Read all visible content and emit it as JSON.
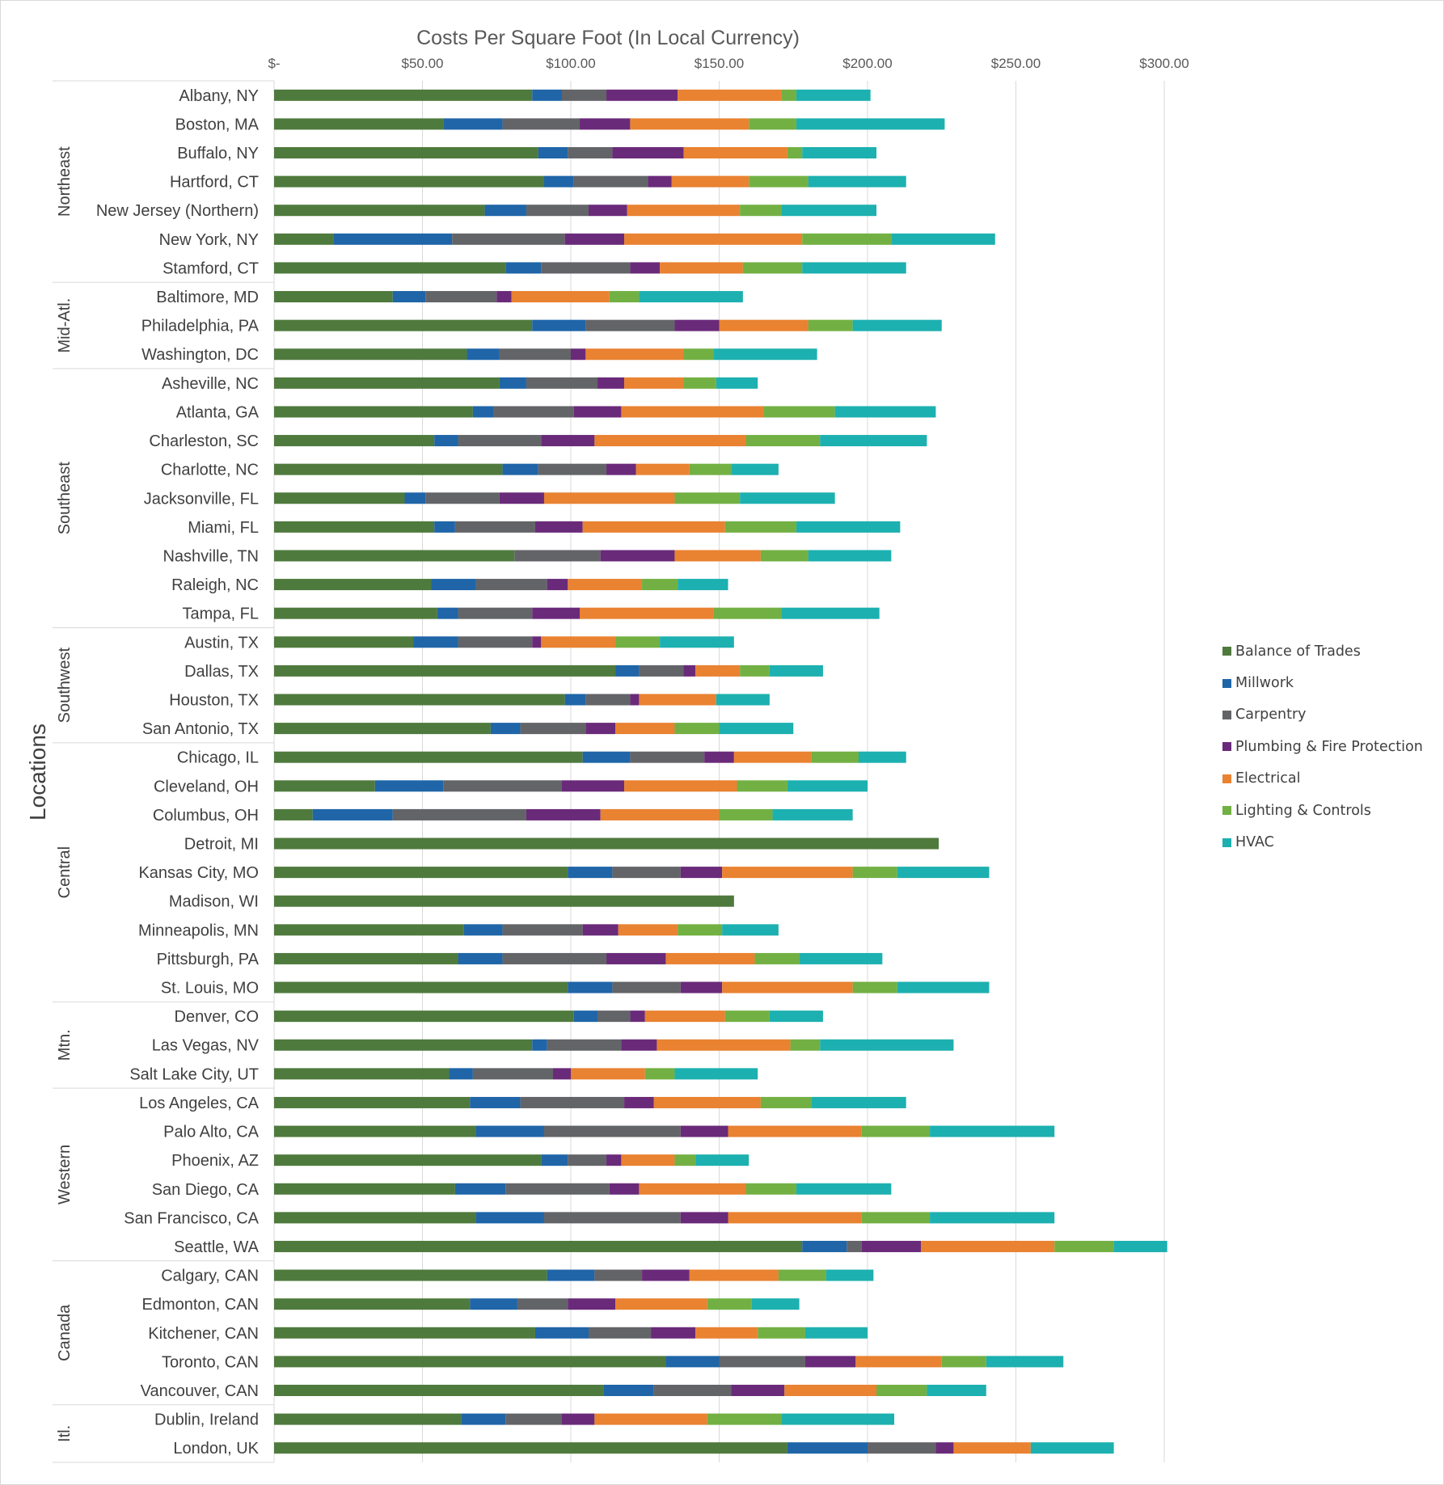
{
  "chart_data": {
    "type": "bar",
    "orientation": "horizontal",
    "stacked": true,
    "title": "Costs Per Square Foot (In Local Currency)",
    "ylabel": "Locations",
    "xlim": [
      0,
      300
    ],
    "xticks": [
      {
        "value": 0,
        "label": "$-"
      },
      {
        "value": 50,
        "label": "$50.00"
      },
      {
        "value": 100,
        "label": "$100.00"
      },
      {
        "value": 150,
        "label": "$150.00"
      },
      {
        "value": 200,
        "label": "$200.00"
      },
      {
        "value": 250,
        "label": "$250.00"
      },
      {
        "value": 300,
        "label": "$300.00"
      }
    ],
    "grid": true,
    "legend_position": "right",
    "groups": [
      {
        "name": "Northeast",
        "start": 0,
        "count": 7
      },
      {
        "name": "Mid-Atl.",
        "start": 7,
        "count": 3
      },
      {
        "name": "Southeast",
        "start": 10,
        "count": 9
      },
      {
        "name": "Southwest",
        "start": 19,
        "count": 4
      },
      {
        "name": "Central",
        "start": 23,
        "count": 9
      },
      {
        "name": "Mtn.",
        "start": 32,
        "count": 3
      },
      {
        "name": "Western",
        "start": 35,
        "count": 6
      },
      {
        "name": "Canada",
        "start": 41,
        "count": 5
      },
      {
        "name": "Itl.",
        "start": 46,
        "count": 2
      }
    ],
    "categories": [
      "Albany, NY",
      "Boston, MA",
      "Buffalo, NY",
      "Hartford, CT",
      "New Jersey (Northern)",
      "New York, NY",
      "Stamford, CT",
      "Baltimore, MD",
      "Philadelphia, PA",
      "Washington, DC",
      "Asheville, NC",
      "Atlanta, GA",
      "Charleston, SC",
      "Charlotte, NC",
      "Jacksonville, FL",
      "Miami, FL",
      "Nashville, TN",
      "Raleigh, NC",
      "Tampa, FL",
      "Austin, TX",
      "Dallas, TX",
      "Houston, TX",
      "San Antonio, TX",
      "Chicago, IL",
      "Cleveland, OH",
      "Columbus, OH",
      "Detroit, MI",
      "Kansas City, MO",
      "Madison, WI",
      "Minneapolis, MN",
      "Pittsburgh, PA",
      "St. Louis, MO",
      "Denver, CO",
      "Las Vegas, NV",
      "Salt Lake City, UT",
      "Los Angeles, CA",
      "Palo Alto, CA",
      "Phoenix, AZ",
      "San Diego, CA",
      "San Francisco, CA",
      "Seattle, WA",
      "Calgary, CAN",
      "Edmonton, CAN",
      "Kitchener, CAN",
      "Toronto, CAN",
      "Vancouver, CAN",
      "Dublin, Ireland",
      "London, UK"
    ],
    "series": [
      {
        "name": "Balance of Trades",
        "color": "#4f7a3d",
        "values": [
          87,
          57,
          89,
          91,
          71,
          20,
          78,
          40,
          87,
          65,
          76,
          67,
          54,
          77,
          44,
          54,
          81,
          53,
          55,
          47,
          115,
          98,
          73,
          104,
          34,
          13,
          224,
          99,
          155,
          64,
          62,
          99,
          101,
          87,
          59,
          66,
          68,
          90,
          61,
          68,
          178,
          92,
          66,
          88,
          132,
          111,
          63,
          173
        ]
      },
      {
        "name": "Millwork",
        "color": "#1f65a8",
        "values": [
          10,
          20,
          10,
          10,
          14,
          40,
          12,
          11,
          18,
          11,
          9,
          7,
          8,
          12,
          7,
          7,
          0,
          15,
          7,
          15,
          8,
          7,
          10,
          16,
          23,
          27,
          0,
          15,
          0,
          13,
          15,
          15,
          8,
          5,
          8,
          17,
          23,
          9,
          17,
          23,
          15,
          16,
          16,
          18,
          18,
          17,
          15,
          27
        ]
      },
      {
        "name": "Carpentry",
        "color": "#636468",
        "values": [
          15,
          26,
          15,
          25,
          21,
          38,
          30,
          24,
          30,
          24,
          24,
          27,
          28,
          23,
          25,
          27,
          29,
          24,
          25,
          25,
          15,
          15,
          22,
          25,
          40,
          45,
          0,
          23,
          0,
          27,
          35,
          23,
          11,
          25,
          27,
          35,
          46,
          13,
          35,
          46,
          5,
          16,
          17,
          21,
          29,
          26,
          19,
          23
        ]
      },
      {
        "name": "Plumbing & Fire Protection",
        "color": "#6a2a7a",
        "values": [
          24,
          17,
          24,
          8,
          13,
          20,
          10,
          5,
          15,
          5,
          9,
          16,
          18,
          10,
          15,
          16,
          25,
          7,
          16,
          3,
          4,
          3,
          10,
          10,
          21,
          25,
          0,
          14,
          0,
          12,
          20,
          14,
          5,
          12,
          6,
          10,
          16,
          5,
          10,
          16,
          20,
          16,
          16,
          15,
          17,
          18,
          11,
          6
        ]
      },
      {
        "name": "Electrical",
        "color": "#e98231",
        "values": [
          35,
          40,
          35,
          26,
          38,
          60,
          28,
          33,
          30,
          33,
          20,
          48,
          51,
          18,
          44,
          48,
          29,
          25,
          45,
          25,
          15,
          26,
          20,
          26,
          38,
          40,
          0,
          44,
          0,
          20,
          30,
          44,
          27,
          45,
          25,
          36,
          45,
          18,
          36,
          45,
          45,
          30,
          31,
          21,
          29,
          31,
          38,
          26
        ]
      },
      {
        "name": "Lighting & Controls",
        "color": "#72b043",
        "values": [
          5,
          16,
          5,
          20,
          14,
          30,
          20,
          10,
          15,
          10,
          11,
          24,
          25,
          14,
          22,
          24,
          16,
          12,
          23,
          15,
          10,
          0,
          15,
          16,
          17,
          18,
          0,
          15,
          0,
          15,
          15,
          15,
          15,
          10,
          10,
          17,
          23,
          7,
          17,
          23,
          20,
          16,
          15,
          16,
          15,
          17,
          25,
          0
        ]
      },
      {
        "name": "HVAC",
        "color": "#1db0b0",
        "values": [
          25,
          50,
          25,
          33,
          32,
          35,
          35,
          35,
          30,
          35,
          14,
          34,
          36,
          16,
          32,
          35,
          28,
          17,
          33,
          25,
          18,
          18,
          25,
          16,
          27,
          27,
          0,
          31,
          0,
          19,
          28,
          31,
          18,
          45,
          28,
          32,
          42,
          18,
          32,
          42,
          18,
          16,
          16,
          21,
          26,
          20,
          38,
          28
        ]
      }
    ]
  }
}
